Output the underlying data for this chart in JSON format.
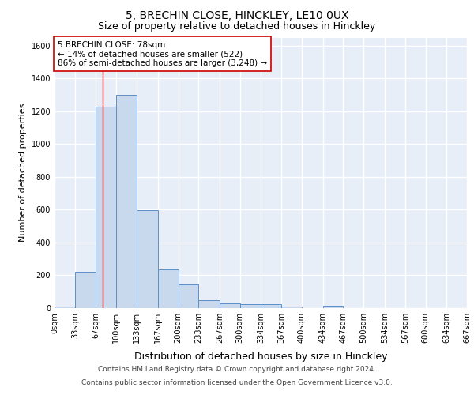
{
  "title1": "5, BRECHIN CLOSE, HINCKLEY, LE10 0UX",
  "title2": "Size of property relative to detached houses in Hinckley",
  "xlabel": "Distribution of detached houses by size in Hinckley",
  "ylabel": "Number of detached properties",
  "bin_edges": [
    0,
    33,
    67,
    100,
    133,
    167,
    200,
    233,
    267,
    300,
    334,
    367,
    400,
    434,
    467,
    500,
    534,
    567,
    600,
    634,
    667
  ],
  "bar_heights": [
    10,
    220,
    1230,
    1300,
    595,
    237,
    143,
    50,
    30,
    25,
    25,
    10,
    0,
    15,
    0,
    0,
    0,
    0,
    0,
    0
  ],
  "bar_facecolor": "#c8d9ee",
  "bar_edgecolor": "#5b8fc9",
  "property_size": 78,
  "vline_color": "#aa0000",
  "annotation_text": "5 BRECHIN CLOSE: 78sqm\n← 14% of detached houses are smaller (522)\n86% of semi-detached houses are larger (3,248) →",
  "annotation_box_edgecolor": "#cc0000",
  "annotation_box_facecolor": "#ffffff",
  "ylim": [
    0,
    1650
  ],
  "yticks": [
    0,
    200,
    400,
    600,
    800,
    1000,
    1200,
    1400,
    1600
  ],
  "background_color": "#e8eef8",
  "grid_color": "#ffffff",
  "footer1": "Contains HM Land Registry data © Crown copyright and database right 2024.",
  "footer2": "Contains public sector information licensed under the Open Government Licence v3.0.",
  "title1_fontsize": 10,
  "title2_fontsize": 9,
  "xlabel_fontsize": 9,
  "ylabel_fontsize": 8,
  "tick_fontsize": 7,
  "annotation_fontsize": 7.5,
  "footer_fontsize": 6.5
}
